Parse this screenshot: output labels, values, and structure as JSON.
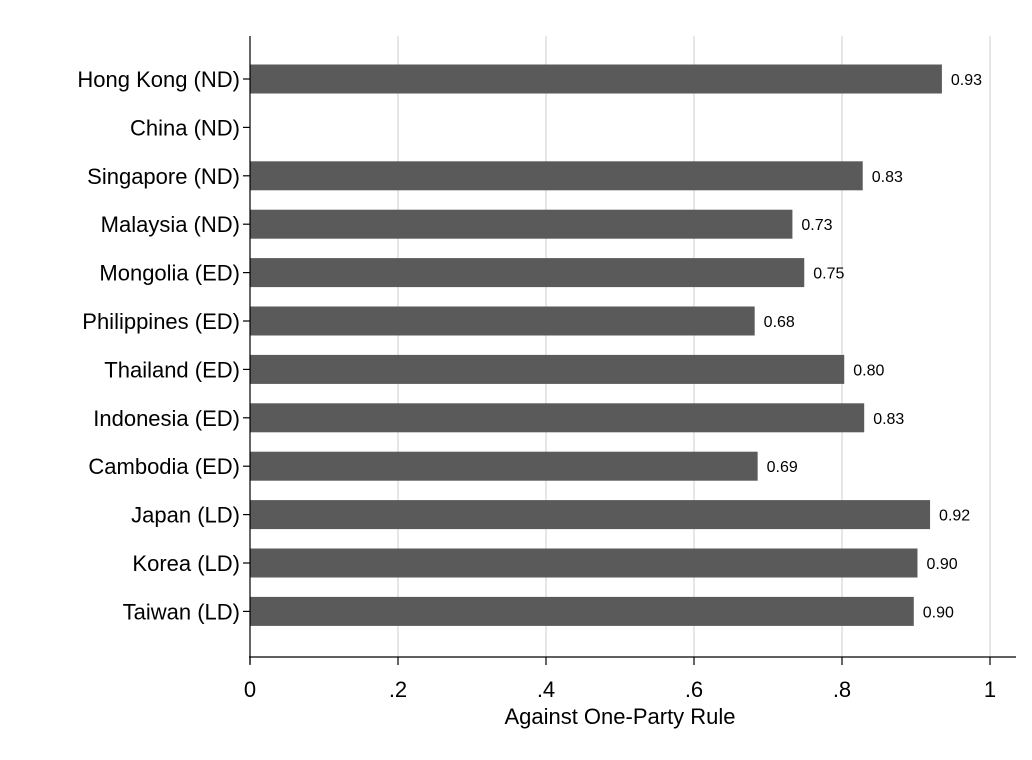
{
  "chart_data": {
    "type": "bar",
    "orientation": "horizontal",
    "categories": [
      "Hong Kong (ND)",
      "China (ND)",
      "Singapore (ND)",
      "Malaysia (ND)",
      "Mongolia (ED)",
      "Philippines (ED)",
      "Thailand (ED)",
      "Indonesia (ED)",
      "Cambodia (ED)",
      "Japan (LD)",
      "Korea (LD)",
      "Taiwan (LD)"
    ],
    "values": [
      0.935,
      null,
      0.828,
      0.733,
      0.749,
      0.682,
      0.803,
      0.83,
      0.686,
      0.919,
      0.902,
      0.897
    ],
    "value_labels": [
      "0.93",
      "",
      "0.83",
      "0.73",
      "0.75",
      "0.68",
      "0.80",
      "0.83",
      "0.69",
      "0.92",
      "0.90",
      "0.90"
    ],
    "xlabel": "Against One-Party Rule",
    "ylabel": "",
    "xlim": [
      0,
      1
    ],
    "xticks": [
      0,
      0.2,
      0.4,
      0.6,
      0.8,
      1
    ],
    "xtick_labels": [
      "0",
      ".2",
      ".4",
      ".6",
      ".8",
      "1"
    ],
    "grid": true,
    "bar_color": "#5a5a5a",
    "grid_color": "#e6e6e6",
    "legend": "none"
  }
}
